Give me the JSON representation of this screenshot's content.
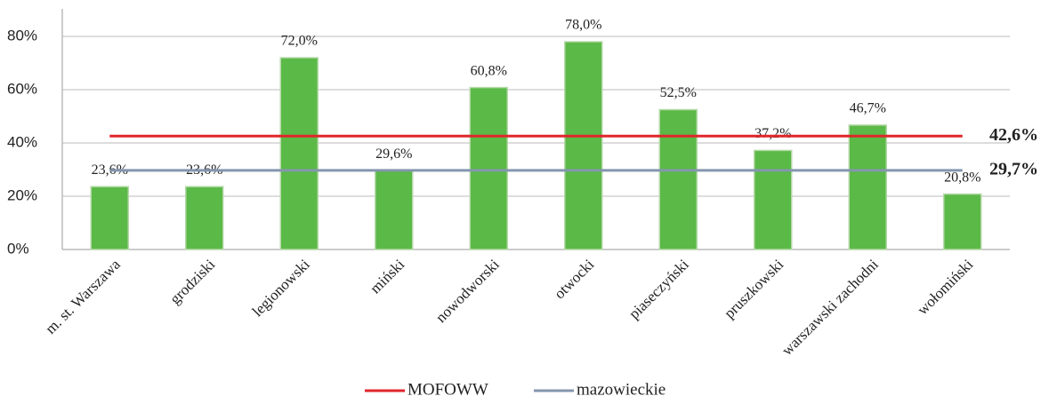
{
  "chart_data": {
    "type": "bar",
    "categories": [
      "m. st. Warszawa",
      "grodziski",
      "legionowski",
      "miński",
      "nowodworski",
      "otwocki",
      "piaseczyński",
      "pruszkowski",
      "warszawski zachodni",
      "wołomiński"
    ],
    "values": [
      23.6,
      23.6,
      72.0,
      29.6,
      60.8,
      78.0,
      52.5,
      37.2,
      46.7,
      20.8
    ],
    "value_labels": [
      "23,6%",
      "23,6%",
      "72,0%",
      "29,6%",
      "60,8%",
      "78,0%",
      "52,5%",
      "37,2%",
      "46,7%",
      "20,8%"
    ],
    "color": "#5bb947",
    "lines": [
      {
        "name": "MOFOWW",
        "color": "#e0262b",
        "value": 42.6,
        "value_label": "42,6%"
      },
      {
        "name": "mazowieckie",
        "color": "#8496ae",
        "value": 29.7,
        "value_label": "29,7%"
      }
    ],
    "ylim": [
      0,
      90
    ],
    "yticks": [
      {
        "value": 0,
        "label": "0%"
      },
      {
        "value": 20,
        "label": "20%"
      },
      {
        "value": 40,
        "label": "40%"
      },
      {
        "value": 60,
        "label": "60%"
      },
      {
        "value": 80,
        "label": "80%"
      }
    ],
    "grid": true
  }
}
